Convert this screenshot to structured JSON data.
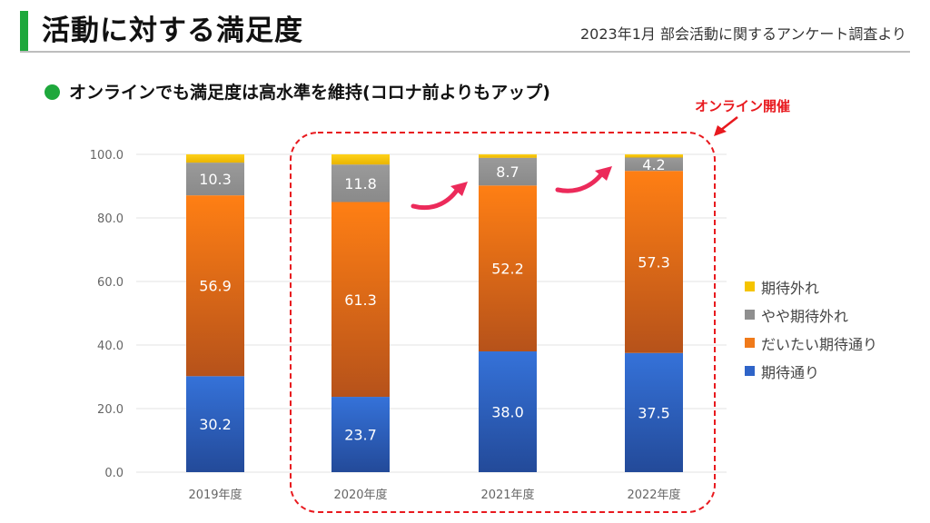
{
  "header": {
    "title": "活動に対する満足度",
    "source": "2023年1月 部会活動に関するアンケート調査より"
  },
  "subtitle": "オンラインでも満足度は高水準を維持(コロナ前よりもアップ)",
  "annotation": {
    "online_label": "オンライン開催"
  },
  "colors": {
    "accent": "#1ea83c",
    "highlight": "#e8191e",
    "arrow": "#ec2a5a"
  },
  "chart_data": {
    "type": "bar",
    "stacked": true,
    "categories": [
      "2019年度",
      "2020年度",
      "2021年度",
      "2022年度"
    ],
    "ylim": [
      0,
      100
    ],
    "yticks": [
      "0.0",
      "20.0",
      "40.0",
      "60.0",
      "80.0",
      "100.0"
    ],
    "grid": true,
    "legend_position": "right",
    "series": [
      {
        "name": "期待通り",
        "color": "#2f64c8",
        "values": [
          30.2,
          23.7,
          38.0,
          37.5
        ],
        "labels": [
          "30.2",
          "23.7",
          "38.0",
          "37.5"
        ]
      },
      {
        "name": "だいたい期待通り",
        "color": "#f07a1a",
        "values": [
          56.9,
          61.3,
          52.2,
          57.3
        ],
        "labels": [
          "56.9",
          "61.3",
          "52.2",
          "57.3"
        ]
      },
      {
        "name": "やや期待外れ",
        "color": "#9a9a9a",
        "values": [
          10.3,
          11.8,
          8.7,
          4.2
        ],
        "labels": [
          "10.3",
          "11.8",
          "8.7",
          "4.2"
        ]
      },
      {
        "name": "期待外れ",
        "color": "#f5c400",
        "values": [
          2.6,
          3.2,
          1.1,
          1.0
        ],
        "labels": [
          "",
          "",
          "",
          ""
        ]
      }
    ]
  }
}
